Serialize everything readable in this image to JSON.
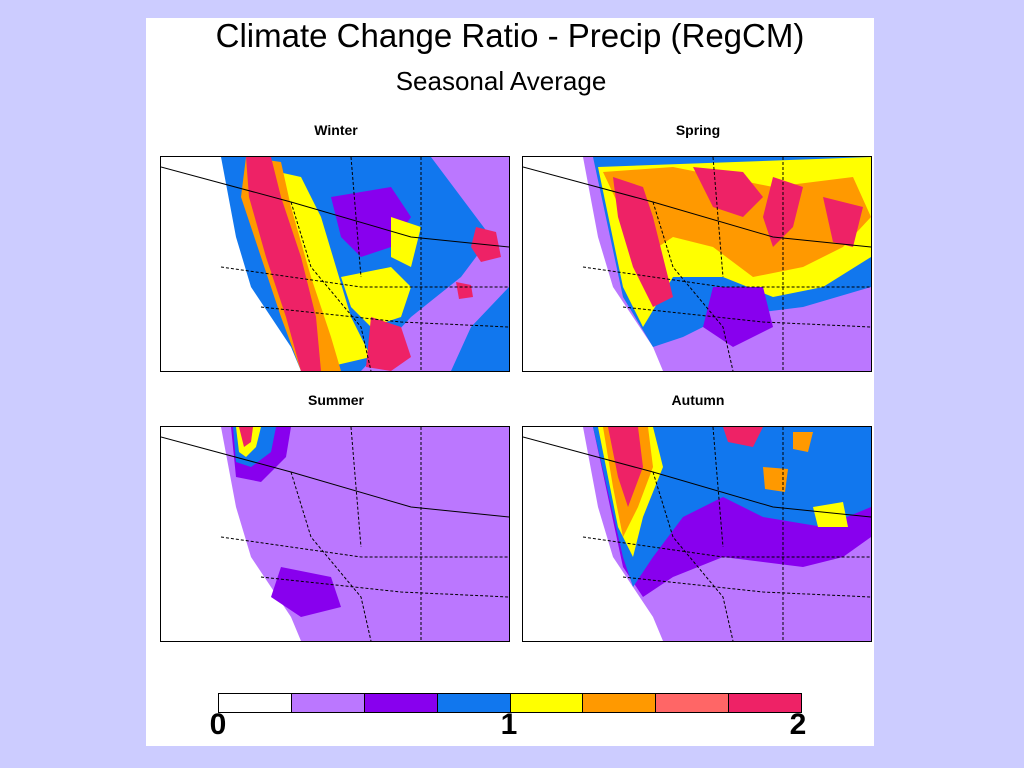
{
  "title": "Climate Change Ratio - Precip (RegCM)",
  "subtitle": "Seasonal Average",
  "panels": [
    {
      "season": "Winter",
      "dominant_level": "mixed, high ratios along coast"
    },
    {
      "season": "Spring",
      "dominant_level": "mixed, high ratios north"
    },
    {
      "season": "Summer",
      "dominant_level": "mostly low ratios"
    },
    {
      "season": "Autumn",
      "dominant_level": "mixed, high ratios along coast"
    }
  ],
  "colorbar": {
    "min_label": "0",
    "mid_label": "1",
    "max_label": "2",
    "colors": [
      "#ffffff",
      "#bb77ff",
      "#8800ee",
      "#1177ee",
      "#ffff00",
      "#ff9900",
      "#ff6666",
      "#ee2266"
    ]
  }
}
